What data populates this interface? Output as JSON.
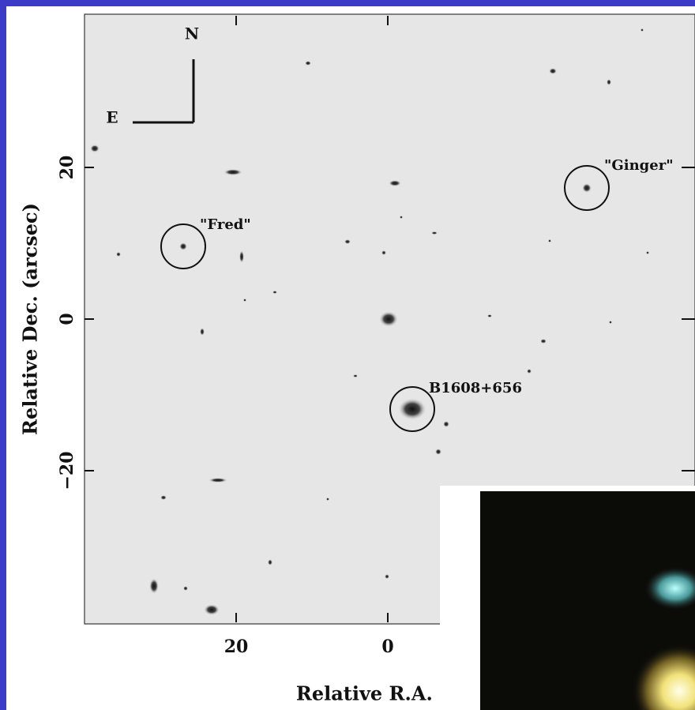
{
  "chart_data": {
    "type": "image",
    "xlabel": "Relative R.A. (arcsec)",
    "ylabel": "Relative Dec. (arcsec)",
    "xlim": [
      40,
      -40
    ],
    "ylim": [
      -40,
      40
    ],
    "xticks": [
      20,
      0
    ],
    "yticks": [
      {
        "value": -20,
        "label": "−20"
      },
      0,
      20
    ],
    "compass": {
      "north": "N",
      "east": "E"
    },
    "annotations": [
      "\"Fred\"",
      "\"Ginger\"",
      "B1608+656"
    ]
  }
}
